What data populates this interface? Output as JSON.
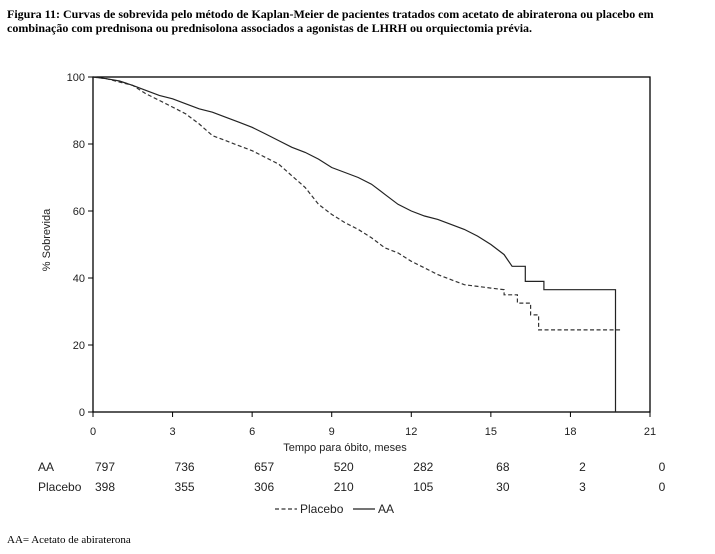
{
  "figure": {
    "caption": "Figura 11: Curvas de sobrevida pelo método de Kaplan-Meier de pacientes tratados com acetato de abiraterona ou placebo em combinação com prednisona ou prednisolona associados a agonistas de LHRH ou orquiectomia prévia.",
    "footnote": "AA= Acetato de abiraterona"
  },
  "chart_data": {
    "type": "line",
    "title": "",
    "xlabel": "Tempo para óbito, meses",
    "ylabel": "% Sobrevida",
    "xlim": [
      0,
      21
    ],
    "ylim": [
      0,
      100
    ],
    "xticks": [
      0,
      3,
      6,
      9,
      12,
      15,
      18,
      21
    ],
    "yticks": [
      0,
      20,
      40,
      60,
      80,
      100
    ],
    "grid": false,
    "legend": {
      "position": "bottom-center"
    },
    "series": [
      {
        "name": "Placebo",
        "style": "dashed",
        "color": "#333333",
        "points": [
          [
            0,
            100
          ],
          [
            0.5,
            99.5
          ],
          [
            1,
            98.5
          ],
          [
            1.5,
            97.5
          ],
          [
            2,
            95
          ],
          [
            2.5,
            93
          ],
          [
            3,
            91
          ],
          [
            3.5,
            89
          ],
          [
            4,
            86
          ],
          [
            4.5,
            82.5
          ],
          [
            5,
            81
          ],
          [
            5.5,
            79.5
          ],
          [
            6,
            78
          ],
          [
            6.5,
            76
          ],
          [
            7,
            74
          ],
          [
            7.5,
            70.5
          ],
          [
            8,
            67
          ],
          [
            8.5,
            62
          ],
          [
            9,
            59
          ],
          [
            9.5,
            56.5
          ],
          [
            10,
            54.5
          ],
          [
            10.5,
            52
          ],
          [
            11,
            49
          ],
          [
            11.5,
            47.5
          ],
          [
            12,
            45
          ],
          [
            12.5,
            43
          ],
          [
            13,
            41
          ],
          [
            13.5,
            39.5
          ],
          [
            14,
            38
          ],
          [
            14.5,
            37.5
          ],
          [
            15,
            37
          ],
          [
            15.5,
            36.5
          ],
          [
            15.5,
            35
          ],
          [
            16,
            35
          ],
          [
            16,
            32.5
          ],
          [
            16.5,
            32.5
          ],
          [
            16.5,
            29
          ],
          [
            16.8,
            29
          ],
          [
            16.8,
            24.5
          ],
          [
            19.5,
            24.5
          ],
          [
            19.9,
            24.5
          ]
        ]
      },
      {
        "name": "AA",
        "style": "solid",
        "color": "#222222",
        "points": [
          [
            0,
            100
          ],
          [
            0.5,
            99.5
          ],
          [
            1,
            98.8
          ],
          [
            1.5,
            97.5
          ],
          [
            2,
            96
          ],
          [
            2.5,
            94.5
          ],
          [
            3,
            93.5
          ],
          [
            3.5,
            92
          ],
          [
            4,
            90.5
          ],
          [
            4.5,
            89.5
          ],
          [
            5,
            88
          ],
          [
            5.5,
            86.5
          ],
          [
            6,
            85
          ],
          [
            6.5,
            83
          ],
          [
            7,
            81
          ],
          [
            7.5,
            79
          ],
          [
            8,
            77.5
          ],
          [
            8.5,
            75.5
          ],
          [
            9,
            73
          ],
          [
            9.5,
            71.5
          ],
          [
            10,
            70
          ],
          [
            10.5,
            68
          ],
          [
            11,
            65
          ],
          [
            11.5,
            62
          ],
          [
            12,
            60
          ],
          [
            12.5,
            58.5
          ],
          [
            13,
            57.5
          ],
          [
            13.5,
            56
          ],
          [
            14,
            54.5
          ],
          [
            14.5,
            52.5
          ],
          [
            15,
            50
          ],
          [
            15.5,
            47
          ],
          [
            15.8,
            43.5
          ],
          [
            16.3,
            43.5
          ],
          [
            16.3,
            39
          ],
          [
            17,
            39
          ],
          [
            17,
            36.5
          ],
          [
            19.7,
            36.5
          ],
          [
            19.7,
            0
          ]
        ]
      }
    ],
    "risk_table": {
      "x": [
        0,
        3,
        6,
        9,
        12,
        15,
        18,
        21
      ],
      "rows": [
        {
          "label": "AA",
          "values": [
            "797",
            "736",
            "657",
            "520",
            "282",
            "68",
            "2",
            "0"
          ]
        },
        {
          "label": "Placebo",
          "values": [
            "398",
            "355",
            "306",
            "210",
            "105",
            "30",
            "3",
            "0"
          ]
        }
      ]
    }
  }
}
